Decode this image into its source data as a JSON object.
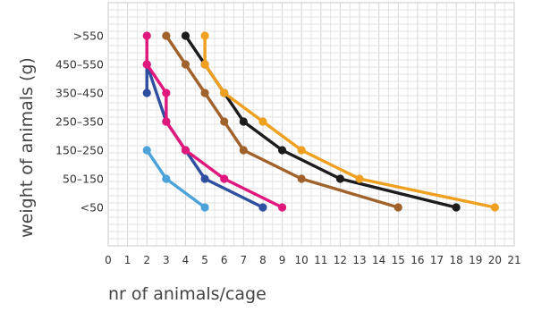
{
  "chart_data": {
    "type": "line",
    "xlabel": "nr of animals/cage",
    "ylabel": "weight of animals (g)",
    "x_ticks": [
      "0",
      "1",
      "2",
      "3",
      "4",
      "5",
      "6",
      "7",
      "8",
      "9",
      "10",
      "11",
      "12",
      "13",
      "14",
      "15",
      "16",
      "17",
      "18",
      "19",
      "20",
      "21"
    ],
    "xlim": [
      0,
      21
    ],
    "categories": [
      "<50",
      "50–150",
      "150–250",
      "250–350",
      "350–450",
      "450–550",
      ">550"
    ],
    "grid": true,
    "series": [
      {
        "color": "#4ba3d9",
        "points": [
          [
            2,
            "150–250"
          ],
          [
            3,
            "50–150"
          ],
          [
            5,
            "<50"
          ]
        ]
      },
      {
        "color": "#2e4fa0",
        "points": [
          [
            2,
            "350–450"
          ],
          [
            2,
            "450–550"
          ],
          [
            3,
            "250–350"
          ],
          [
            4,
            "150–250"
          ],
          [
            5,
            "50–150"
          ],
          [
            8,
            "<50"
          ]
        ]
      },
      {
        "color": "#e0177c",
        "points": [
          [
            2,
            ">550"
          ],
          [
            2,
            "450–550"
          ],
          [
            3,
            "350–450"
          ],
          [
            3,
            "250–350"
          ],
          [
            4,
            "150–250"
          ],
          [
            6,
            "50–150"
          ],
          [
            9,
            "<50"
          ]
        ]
      },
      {
        "color": "#a0622a",
        "points": [
          [
            3,
            ">550"
          ],
          [
            4,
            "450–550"
          ],
          [
            5,
            "350–450"
          ],
          [
            6,
            "250–350"
          ],
          [
            7,
            "150–250"
          ],
          [
            10,
            "50–150"
          ],
          [
            15,
            "<50"
          ]
        ]
      },
      {
        "color": "#1c1c1c",
        "points": [
          [
            4,
            ">550"
          ],
          [
            5,
            "450–550"
          ],
          [
            6,
            "350–450"
          ],
          [
            7,
            "250–350"
          ],
          [
            9,
            "150–250"
          ],
          [
            12,
            "50–150"
          ],
          [
            18,
            "<50"
          ]
        ]
      },
      {
        "color": "#f0a020",
        "points": [
          [
            5,
            ">550"
          ],
          [
            5,
            "450–550"
          ],
          [
            6,
            "350–450"
          ],
          [
            8,
            "250–350"
          ],
          [
            10,
            "150–250"
          ],
          [
            13,
            "50–150"
          ],
          [
            20,
            "<50"
          ]
        ]
      }
    ]
  }
}
